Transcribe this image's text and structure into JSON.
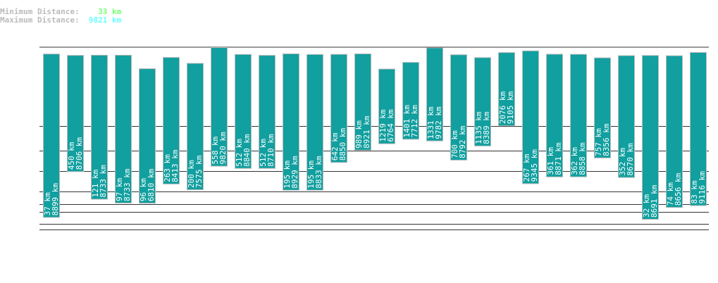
{
  "header": {
    "min_label": "Minimum Distance:",
    "min_value": "33 km",
    "min_color": "#77ff77",
    "max_label": "Maximum Distance:",
    "max_value": "9821 km",
    "max_color": "#66ffff"
  },
  "chart_data": {
    "type": "bar",
    "subtype": "floating-range",
    "unit": "km",
    "bar_color": "#119f9f",
    "series": [
      {
        "min": 37,
        "max": 8899
      },
      {
        "min": 450,
        "max": 8706
      },
      {
        "min": 121,
        "max": 8733
      },
      {
        "min": 97,
        "max": 8733
      },
      {
        "min": 96,
        "max": 6810
      },
      {
        "min": 263,
        "max": 8413
      },
      {
        "min": 200,
        "max": 7575
      },
      {
        "min": 558,
        "max": 9820
      },
      {
        "min": 512,
        "max": 8840
      },
      {
        "min": 512,
        "max": 8710
      },
      {
        "min": 195,
        "max": 8929
      },
      {
        "min": 195,
        "max": 8833
      },
      {
        "min": 642,
        "max": 8850
      },
      {
        "min": 989,
        "max": 8921
      },
      {
        "min": 1219,
        "max": 6764
      },
      {
        "min": 1401,
        "max": 7712
      },
      {
        "min": 1331,
        "max": 9782
      },
      {
        "min": 700,
        "max": 8792
      },
      {
        "min": 1135,
        "max": 8389
      },
      {
        "min": 2076,
        "max": 9105
      },
      {
        "min": 267,
        "max": 9345
      },
      {
        "min": 361,
        "max": 8871
      },
      {
        "min": 362,
        "max": 8858
      },
      {
        "min": 757,
        "max": 8356
      },
      {
        "min": 352,
        "max": 8670
      },
      {
        "min": 32,
        "max": 8691
      },
      {
        "min": 74,
        "max": 8656
      },
      {
        "min": 83,
        "max": 9116
      }
    ],
    "grid": true
  }
}
